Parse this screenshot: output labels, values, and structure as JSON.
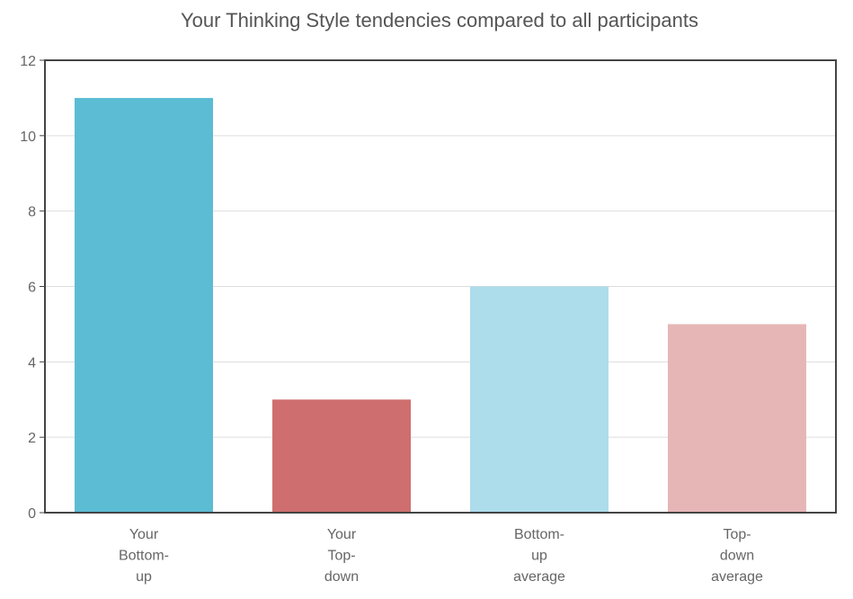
{
  "chart_data": {
    "type": "bar",
    "title": "Your Thinking Style tendencies compared to all participants",
    "categories": [
      [
        "Your",
        "Bottom-",
        "up"
      ],
      [
        "Your",
        "Top-",
        "down"
      ],
      [
        "Bottom-",
        "up",
        "average"
      ],
      [
        "Top-",
        "down",
        "average"
      ]
    ],
    "values": [
      11,
      3,
      6,
      5
    ],
    "colors": [
      "#5bbcd4",
      "#cf6e6e",
      "#addcea",
      "#e6b6b6"
    ],
    "ylim": [
      0,
      12
    ],
    "yticks": [
      0,
      2,
      4,
      6,
      8,
      10,
      12
    ],
    "grid": true,
    "legend": "none"
  }
}
